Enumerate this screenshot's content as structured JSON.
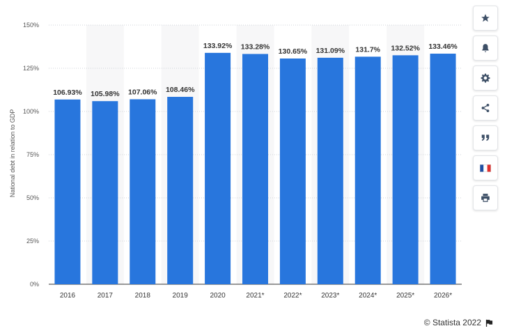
{
  "chart_data": {
    "type": "bar",
    "categories": [
      "2016",
      "2017",
      "2018",
      "2019",
      "2020",
      "2021*",
      "2022*",
      "2023*",
      "2024*",
      "2025*",
      "2026*"
    ],
    "values": [
      106.93,
      105.98,
      107.06,
      108.46,
      133.92,
      133.28,
      130.65,
      131.09,
      131.7,
      132.52,
      133.46
    ],
    "value_labels": [
      "106.93%",
      "105.98%",
      "107.06%",
      "108.46%",
      "133.92%",
      "133.28%",
      "130.65%",
      "131.09%",
      "131.7%",
      "132.52%",
      "133.46%"
    ],
    "title": "",
    "xlabel": "",
    "ylabel": "National debt in relation to GDP",
    "ylim": [
      0,
      150
    ],
    "yticks": [
      0,
      25,
      50,
      75,
      100,
      125,
      150
    ],
    "ytick_labels": [
      "0%",
      "25%",
      "50%",
      "75%",
      "100%",
      "125%",
      "150%"
    ],
    "bar_color": "#2876dd",
    "grid": true,
    "alternating_column_shading": true
  },
  "sidebar": {
    "icons": [
      "star-icon",
      "bell-icon",
      "gear-icon",
      "share-icon",
      "quote-icon",
      "french-flag-icon",
      "print-icon"
    ],
    "accent_color": "#3d4f66"
  },
  "footer": {
    "credit": "© Statista 2022",
    "flag_icon": "flag-icon"
  }
}
